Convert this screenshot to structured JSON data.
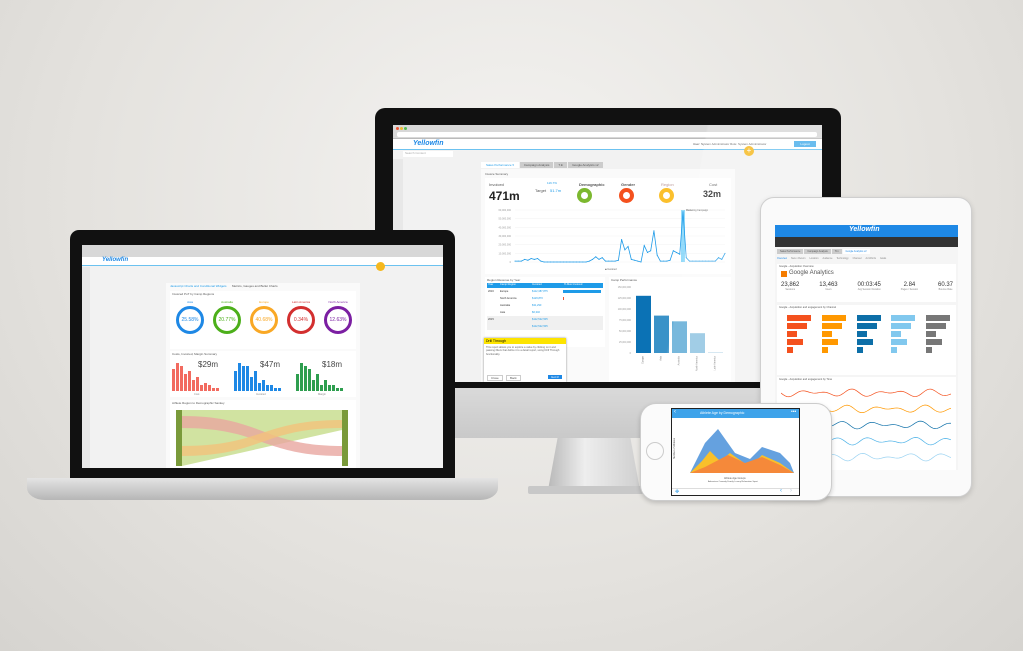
{
  "colors": {
    "accent": "#1e9be8",
    "brand_yellow": "#f5b81e",
    "asia": "#1e88e5",
    "australia": "#4caf1a",
    "europe": "#f9a825",
    "latam": "#d32f2f",
    "namerica": "#7b1fa2"
  },
  "monitor": {
    "header": {
      "logo": "Yellowfin",
      "user_label": "User: System Administrator  Role: System Administrator",
      "logout": "Logout",
      "search_placeholder": "Search Content"
    },
    "tabs": [
      "Sales Performance ▾",
      "Campaign Analysis",
      "T.In",
      "Google Analytics v2"
    ],
    "section": "Invoice Summary",
    "kpis": {
      "invoiced_label": "Invoiced",
      "invoiced": "471m",
      "change": "116.7%",
      "target_label": "Target",
      "target": "51.7m",
      "demographic": "Demographic",
      "demo_legend": [
        "Adventure",
        "Comedy",
        "Other"
      ],
      "gender": "Gender",
      "gender_legend": [
        "Male",
        "Female"
      ],
      "region": "Region",
      "region_legend": [
        "Europe",
        "Other"
      ],
      "cost_label": "Cost",
      "cost": "32m"
    },
    "line_chart": {
      "legend": "Invoiced",
      "annotation": "Marketing Campaign",
      "yticks": [
        "60,000,000",
        "50,000,000",
        "40,000,000",
        "30,000,000",
        "20,000,000",
        "10,000,000",
        "0"
      ],
      "values": [
        1,
        1,
        1,
        3,
        2,
        4,
        3,
        4,
        1,
        0,
        0,
        0,
        0,
        0,
        0,
        0,
        0,
        0,
        0,
        0,
        0,
        0,
        0,
        1,
        3,
        6,
        3,
        5,
        1,
        1,
        1,
        1,
        2,
        26,
        14,
        18,
        3,
        2,
        1,
        0,
        19,
        11,
        13,
        36,
        8,
        1,
        1,
        1,
        2,
        13,
        11,
        9,
        58,
        5,
        1,
        1,
        1,
        1,
        1,
        1,
        1,
        1,
        1,
        5,
        3,
        10
      ]
    },
    "table": {
      "title": "Region Revenue by Year",
      "headers": [
        "Year",
        "Camp Region",
        "Invoiced",
        "% Max Invoiced"
      ],
      "rows": [
        [
          "2016",
          "Europe",
          "$112,387,875",
          1.0
        ],
        [
          "",
          "North America",
          "$126,870",
          0.02
        ],
        [
          "",
          "Australia",
          "$31,290",
          0
        ],
        [
          "",
          "Asia",
          "$6,340",
          0
        ],
        [
          "2015",
          "",
          "$112,522,505",
          null
        ],
        [
          "",
          "",
          "$112,522,505",
          null
        ]
      ]
    },
    "drill": {
      "title": "Drill Through",
      "body": "This report allows you to explore a value by clicking on it and passing filters that define it to a detail report, using Drill Through functionality.",
      "close": "Close",
      "back": "Back",
      "got_it": "Got it!"
    },
    "bar_chart": {
      "title": "Camp Performance",
      "categories": [
        "Europe",
        "Asia",
        "Australia",
        "North America",
        "Latin America"
      ],
      "values": [
        130000000,
        85000000,
        72000000,
        45000000,
        2000000
      ],
      "yticks": [
        "150,000,000",
        "125,000,000",
        "100,000,000",
        "75,000,000",
        "50,000,000",
        "25,000,000",
        "0"
      ],
      "ymax": 150000000
    }
  },
  "laptop": {
    "logo": "Yellowfin",
    "tabs": [
      "Javascript Charts and Conditional Widgets",
      "Metrics, Gauges and Bullet Charts"
    ],
    "gauges_title": "Invoiced PoT by Camp Regions",
    "gauges": [
      {
        "label": "Asia",
        "value": "25.58%",
        "color": "#1e88e5"
      },
      {
        "label": "Australia",
        "value": "20.77%",
        "color": "#4caf1a"
      },
      {
        "label": "Europe",
        "value": "40.68%",
        "color": "#f9a825"
      },
      {
        "label": "Latin America",
        "value": "0.34%",
        "color": "#d32f2f"
      },
      {
        "label": "North America",
        "value": "12.63%",
        "color": "#7b1fa2"
      }
    ],
    "summary_title": "Costs, Invoiced, Margin Summary",
    "summary": [
      {
        "label": "Cost",
        "value": "$29m",
        "color": "#f26b60",
        "bars": [
          8,
          10,
          9,
          6,
          7,
          4,
          5,
          2,
          3,
          2,
          1,
          1
        ]
      },
      {
        "label": "Invoiced",
        "value": "$47m",
        "color": "#1e88e5",
        "bars": [
          7,
          10,
          9,
          9,
          5,
          7,
          3,
          4,
          2,
          2,
          1,
          1
        ]
      },
      {
        "label": "Margin",
        "value": "$18m",
        "color": "#2e9e4f",
        "bars": [
          6,
          10,
          9,
          8,
          4,
          6,
          2,
          4,
          2,
          2,
          1,
          1
        ]
      }
    ],
    "sankey_title": "Athlete Region to Demographic Sankey"
  },
  "tablet": {
    "logo": "Yellowfin",
    "tabs": [
      "Sales Performance",
      "Campaign Analysis",
      "T.In",
      "Google Analytics v2"
    ],
    "subtabs": [
      "Overview",
      "New v Return",
      "Location",
      "Audience",
      "Technology",
      "Channel",
      "Ad Words",
      "Goals"
    ],
    "ga_title": "Google - Acquisition Overview",
    "ga_logo": "Google Analytics",
    "metrics": [
      {
        "value": "23,862",
        "label": "Sessions"
      },
      {
        "value": "13,463",
        "label": "Users"
      },
      {
        "value": "00:03:45",
        "label": "Avg Session Duration"
      },
      {
        "value": "2.84",
        "label": "Pages / Session"
      },
      {
        "value": "60.37",
        "label": "Bounce Rate"
      }
    ],
    "channel_title": "Google - Acquisition and engagement by Channel",
    "time_title": "Google - Acquisition and engagement by Time",
    "channel_colors": [
      "#f4511e",
      "#ff9800",
      "#0d6fa8",
      "#81c8ee",
      "#777777"
    ],
    "wave_colors": [
      "#f4511e",
      "#ff9800",
      "#0d6fa8",
      "#4fb3e8",
      "#9bd3f2"
    ]
  },
  "phone": {
    "title": "Athlete Age by Demographic",
    "xlabel": "Athlete Age Groups",
    "ylabel": "Number of Athletes",
    "legend": "Adventure  Comedy  Family  Luxury  Relaxation  Sport"
  }
}
